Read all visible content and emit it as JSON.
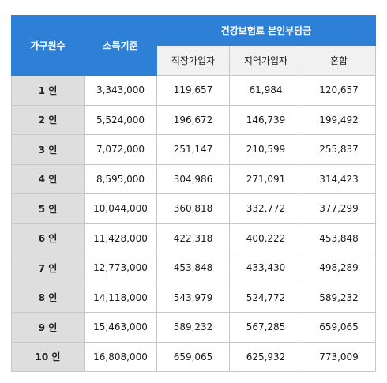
{
  "header": {
    "household": "가구원수",
    "income": "소득기준",
    "insurance_group": "건강보험료 본인부담금",
    "employee": "직장가입자",
    "regional": "지역가입자",
    "mixed": "혼합"
  },
  "rows": [
    {
      "household": "1 인",
      "income": "3,343,000",
      "employee": "119,657",
      "regional": "61,984",
      "mixed": "120,657"
    },
    {
      "household": "2 인",
      "income": "5,524,000",
      "employee": "196,672",
      "regional": "146,739",
      "mixed": "199,492"
    },
    {
      "household": "3 인",
      "income": "7,072,000",
      "employee": "251,147",
      "regional": "210,599",
      "mixed": "255,837"
    },
    {
      "household": "4 인",
      "income": "8,595,000",
      "employee": "304,986",
      "regional": "271,091",
      "mixed": "314,423"
    },
    {
      "household": "5 인",
      "income": "10,044,000",
      "employee": "360,818",
      "regional": "332,772",
      "mixed": "377,299"
    },
    {
      "household": "6 인",
      "income": "11,428,000",
      "employee": "422,318",
      "regional": "400,222",
      "mixed": "453,848"
    },
    {
      "household": "7 인",
      "income": "12,773,000",
      "employee": "453,848",
      "regional": "433,430",
      "mixed": "498,289"
    },
    {
      "household": "8 인",
      "income": "14,118,000",
      "employee": "543,979",
      "regional": "524,772",
      "mixed": "589,232"
    },
    {
      "household": "9 인",
      "income": "15,463,000",
      "employee": "589,232",
      "regional": "567,285",
      "mixed": "659,065"
    },
    {
      "household": "10 인",
      "income": "16,808,000",
      "employee": "659,065",
      "regional": "625,932",
      "mixed": "773,009"
    }
  ],
  "colors": {
    "header_blue": "#2e7fd6",
    "row_head_gray": "#dedede",
    "sub_header_gray": "#f1f1f1",
    "border": "#c7c7c7"
  }
}
